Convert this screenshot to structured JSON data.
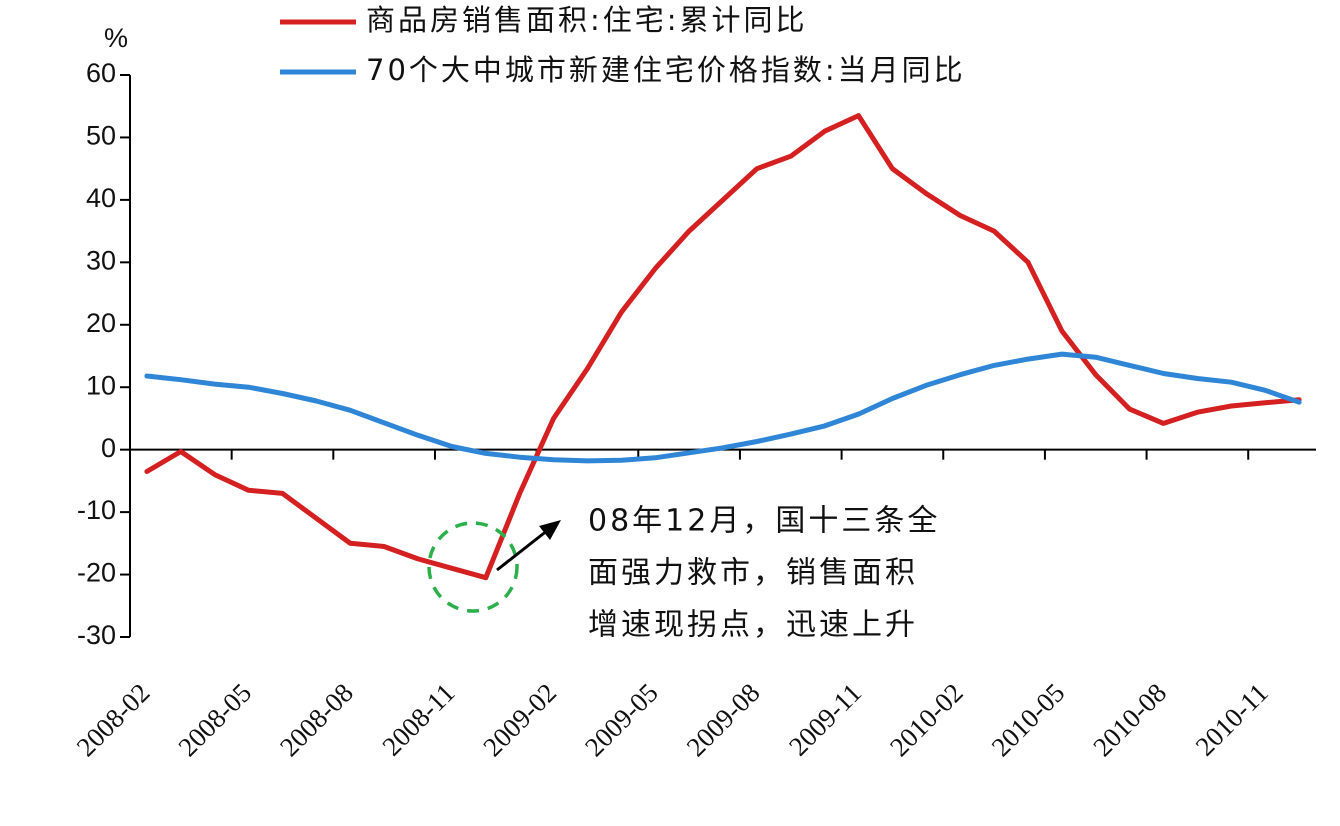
{
  "chart_data": {
    "type": "line",
    "unit": "%",
    "categories": [
      "2008-02",
      null,
      null,
      "2008-05",
      null,
      null,
      "2008-08",
      null,
      null,
      "2008-11",
      null,
      null,
      "2009-02",
      null,
      null,
      "2009-05",
      null,
      null,
      "2009-08",
      null,
      null,
      "2009-11",
      null,
      null,
      "2010-02",
      null,
      null,
      "2010-05",
      null,
      null,
      "2010-08",
      null,
      null,
      "2010-11",
      null
    ],
    "series": [
      {
        "name": "商品房销售面积:住宅:累计同比",
        "color": "#d42020",
        "values": [
          -3.5,
          -0.3,
          -4,
          -6.5,
          -7,
          -11,
          -15,
          -15.5,
          -17.5,
          -19,
          -20.5,
          -7,
          5,
          13,
          22,
          29,
          35,
          40,
          45,
          47,
          51,
          53.5,
          45,
          41,
          37.5,
          35,
          30,
          19,
          12,
          6.5,
          4.2,
          6,
          7,
          7.5,
          8
        ]
      },
      {
        "name": "70个大中城市新建住宅价格指数:当月同比",
        "color": "#2f86d6",
        "values": [
          11.8,
          11.2,
          10.5,
          10,
          9,
          7.8,
          6.3,
          4.3,
          2.3,
          0.5,
          -0.6,
          -1.2,
          -1.6,
          -1.8,
          -1.7,
          -1.3,
          -0.5,
          0.3,
          1.3,
          2.5,
          3.8,
          5.7,
          8.2,
          10.3,
          12,
          13.5,
          14.5,
          15.3,
          14.8,
          13.5,
          12.2,
          11.4,
          10.8,
          9.5,
          7.6
        ]
      }
    ],
    "ylim": [
      -30,
      60
    ],
    "yticks": [
      -30,
      -20,
      -10,
      0,
      10,
      20,
      30,
      40,
      50,
      60
    ],
    "annotation": [
      "08年12月，国十三条全",
      "面强力救市，销售面积",
      "增速现拐点，迅速上升"
    ]
  }
}
